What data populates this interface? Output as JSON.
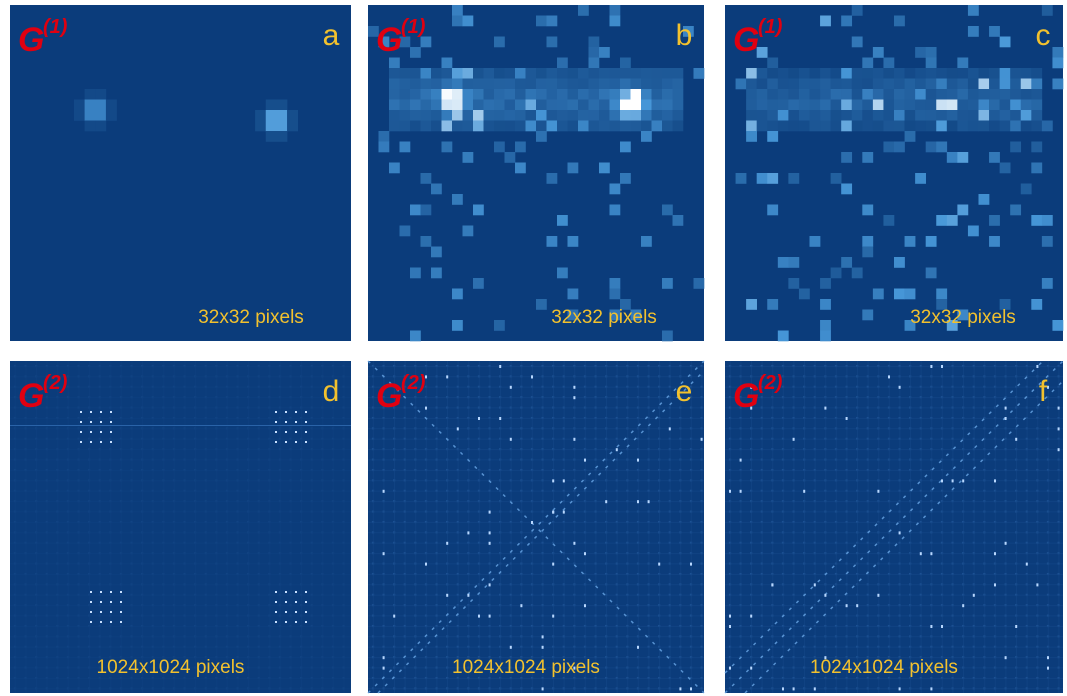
{
  "panels": [
    {
      "symbol": "G",
      "superscript": "(1)",
      "letter": "a",
      "caption": "32x32 pixels"
    },
    {
      "symbol": "G",
      "superscript": "(1)",
      "letter": "b",
      "caption": "32x32 pixels"
    },
    {
      "symbol": "G",
      "superscript": "(1)",
      "letter": "c",
      "caption": "32x32 pixels"
    },
    {
      "symbol": "G",
      "superscript": "(2)",
      "letter": "d",
      "caption": "1024x1024 pixels"
    },
    {
      "symbol": "G",
      "superscript": "(2)",
      "letter": "e",
      "caption": "1024x1024 pixels"
    },
    {
      "symbol": "G",
      "superscript": "(2)",
      "letter": "f",
      "caption": "1024x1024 pixels"
    }
  ]
}
